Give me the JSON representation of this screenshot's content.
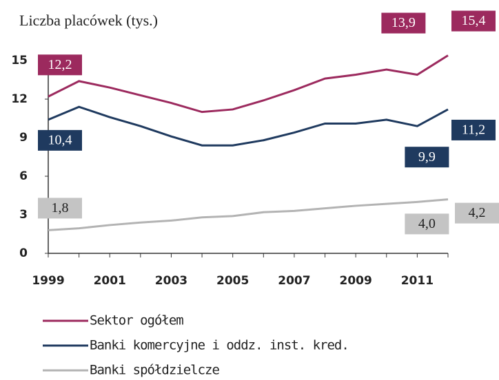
{
  "chart_data": {
    "type": "line",
    "title": "Liczba placówek (tys.)",
    "x": [
      1999,
      2000,
      2001,
      2002,
      2003,
      2004,
      2005,
      2006,
      2007,
      2008,
      2009,
      2010,
      2011,
      2012
    ],
    "xlim": [
      1999,
      2012
    ],
    "xticks": [
      1999,
      2001,
      2003,
      2005,
      2007,
      2009,
      2011
    ],
    "ylim": [
      0,
      15
    ],
    "yticks": [
      0,
      3,
      6,
      9,
      12,
      15
    ],
    "series": [
      {
        "name": "Sektor ogółem",
        "color": "#9c2a5e",
        "values": [
          12.2,
          13.4,
          12.9,
          12.3,
          11.7,
          11.0,
          11.2,
          11.9,
          12.7,
          13.6,
          13.9,
          14.3,
          13.9,
          15.4
        ],
        "value_labels": [
          "12,2",
          null,
          null,
          null,
          null,
          null,
          null,
          null,
          null,
          null,
          null,
          null,
          "13,9",
          "15,4"
        ]
      },
      {
        "name": "Banki komercyjne i oddz. inst. kred.",
        "color": "#1f3a5f",
        "values": [
          10.4,
          11.4,
          10.6,
          9.9,
          9.1,
          8.4,
          8.4,
          8.8,
          9.4,
          10.1,
          10.1,
          10.4,
          9.9,
          11.2
        ],
        "value_labels": [
          "10,4",
          null,
          null,
          null,
          null,
          null,
          null,
          null,
          null,
          null,
          null,
          null,
          "9,9",
          "11,2"
        ]
      },
      {
        "name": "Banki spółdzielcze",
        "color": "#b3b3b3",
        "values": [
          1.8,
          1.95,
          2.2,
          2.4,
          2.55,
          2.8,
          2.9,
          3.2,
          3.3,
          3.5,
          3.7,
          3.85,
          4.0,
          4.2
        ],
        "value_labels": [
          "1,8",
          null,
          null,
          null,
          null,
          null,
          null,
          null,
          null,
          null,
          null,
          null,
          "4,0",
          "4,2"
        ]
      }
    ]
  }
}
